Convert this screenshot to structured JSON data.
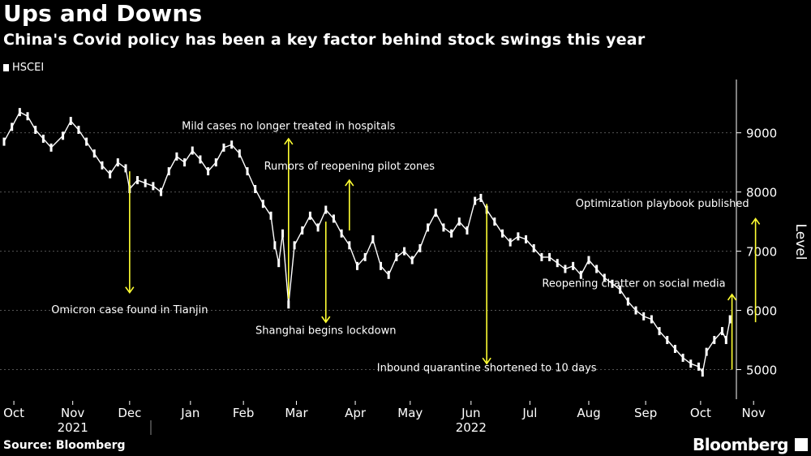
{
  "title": "Ups and Downs",
  "subtitle": "China's Covid policy has been a key factor behind stock swings this year",
  "source": "Source: Bloomberg",
  "brand": "Bloomberg",
  "colors": {
    "background": "#000000",
    "series": "#ffffff",
    "annotation_arrow": "#ffff33",
    "grid": "#555555"
  },
  "chart_data": {
    "type": "line",
    "series": [
      {
        "name": "HSCEI",
        "values": [
          [
            0,
            8850
          ],
          [
            4,
            9100
          ],
          [
            8,
            9350
          ],
          [
            12,
            9280
          ],
          [
            16,
            9050
          ],
          [
            20,
            8900
          ],
          [
            24,
            8750
          ],
          [
            30,
            8950
          ],
          [
            34,
            9200
          ],
          [
            38,
            9050
          ],
          [
            42,
            8850
          ],
          [
            46,
            8650
          ],
          [
            50,
            8450
          ],
          [
            54,
            8300
          ],
          [
            58,
            8500
          ],
          [
            62,
            8400
          ],
          [
            64,
            8050
          ],
          [
            68,
            8200
          ],
          [
            72,
            8150
          ],
          [
            76,
            8100
          ],
          [
            80,
            8000
          ],
          [
            84,
            8350
          ],
          [
            88,
            8600
          ],
          [
            92,
            8500
          ],
          [
            96,
            8700
          ],
          [
            100,
            8550
          ],
          [
            104,
            8350
          ],
          [
            108,
            8500
          ],
          [
            112,
            8750
          ],
          [
            116,
            8800
          ],
          [
            120,
            8650
          ],
          [
            124,
            8350
          ],
          [
            128,
            8050
          ],
          [
            132,
            7800
          ],
          [
            136,
            7600
          ],
          [
            138,
            7100
          ],
          [
            140,
            6800
          ],
          [
            142,
            7300
          ],
          [
            145,
            6100
          ],
          [
            148,
            7100
          ],
          [
            152,
            7350
          ],
          [
            156,
            7600
          ],
          [
            160,
            7400
          ],
          [
            164,
            7700
          ],
          [
            168,
            7550
          ],
          [
            172,
            7300
          ],
          [
            176,
            7100
          ],
          [
            180,
            6750
          ],
          [
            184,
            6900
          ],
          [
            188,
            7200
          ],
          [
            192,
            6750
          ],
          [
            196,
            6600
          ],
          [
            200,
            6900
          ],
          [
            204,
            7000
          ],
          [
            208,
            6850
          ],
          [
            212,
            7050
          ],
          [
            216,
            7400
          ],
          [
            220,
            7650
          ],
          [
            224,
            7400
          ],
          [
            228,
            7300
          ],
          [
            232,
            7500
          ],
          [
            236,
            7350
          ],
          [
            240,
            7850
          ],
          [
            243,
            7900
          ],
          [
            246,
            7700
          ],
          [
            250,
            7500
          ],
          [
            254,
            7300
          ],
          [
            258,
            7150
          ],
          [
            262,
            7250
          ],
          [
            266,
            7200
          ],
          [
            270,
            7050
          ],
          [
            274,
            6900
          ],
          [
            278,
            6900
          ],
          [
            282,
            6800
          ],
          [
            286,
            6700
          ],
          [
            290,
            6750
          ],
          [
            294,
            6600
          ],
          [
            298,
            6850
          ],
          [
            302,
            6700
          ],
          [
            306,
            6550
          ],
          [
            310,
            6450
          ],
          [
            314,
            6350
          ],
          [
            318,
            6150
          ],
          [
            322,
            6000
          ],
          [
            326,
            5900
          ],
          [
            330,
            5850
          ],
          [
            334,
            5650
          ],
          [
            338,
            5500
          ],
          [
            342,
            5350
          ],
          [
            346,
            5200
          ],
          [
            350,
            5100
          ],
          [
            354,
            5050
          ],
          [
            356,
            4950
          ],
          [
            358,
            5300
          ],
          [
            362,
            5500
          ],
          [
            366,
            5650
          ],
          [
            368,
            5500
          ],
          [
            370,
            5850
          ]
        ]
      }
    ],
    "x_range": [
      0,
      372
    ],
    "ylim": [
      4500,
      9900
    ],
    "yticks": [
      5000,
      6000,
      7000,
      8000,
      9000
    ],
    "ylabel": "Level",
    "xticks": [
      {
        "pos": 5,
        "label": "Oct"
      },
      {
        "pos": 35,
        "label": "Nov"
      },
      {
        "pos": 64,
        "label": "Dec"
      },
      {
        "pos": 95,
        "label": "Jan"
      },
      {
        "pos": 122,
        "label": "Feb"
      },
      {
        "pos": 149,
        "label": "Mar"
      },
      {
        "pos": 179,
        "label": "Apr"
      },
      {
        "pos": 207,
        "label": "May"
      },
      {
        "pos": 238,
        "label": "Jun"
      },
      {
        "pos": 268,
        "label": "Jul"
      },
      {
        "pos": 298,
        "label": "Aug"
      },
      {
        "pos": 327,
        "label": "Sep"
      },
      {
        "pos": 355,
        "label": "Oct"
      },
      {
        "pos": 382,
        "label": "Nov"
      }
    ],
    "year_labels": [
      {
        "pos": 35,
        "label": "2021"
      },
      {
        "pos": 238,
        "label": "2022"
      }
    ],
    "annotations": [
      {
        "text": "Omicron case found in Tianjin",
        "x": 64,
        "y_from": 8350,
        "y_to": 6300,
        "text_y": 5950,
        "dir": "down"
      },
      {
        "text": "Mild cases no longer treated in hospitals",
        "x": 145,
        "y_from": 6200,
        "y_to": 8900,
        "text_y": 9060,
        "dir": "up"
      },
      {
        "text": "Rumors of reopening pilot zones",
        "x": 176,
        "y_from": 7350,
        "y_to": 8200,
        "text_y": 8380,
        "dir": "up"
      },
      {
        "text": "Shanghai begins lockdown",
        "x": 164,
        "y_from": 7500,
        "y_to": 5800,
        "text_y": 5600,
        "dir": "down"
      },
      {
        "text": "Inbound quarantine shortened to 10 days",
        "x": 246,
        "y_from": 7800,
        "y_to": 5100,
        "text_y": 4970,
        "dir": "down"
      },
      {
        "text": "Optimization playbook published",
        "x": 383,
        "y_from": 5800,
        "y_to": 7550,
        "text_y": 7750,
        "dir": "up"
      },
      {
        "text": "Reopening chatter on social media",
        "x": 371,
        "y_from": 5000,
        "y_to": 6270,
        "text_y": 6400,
        "dir": "up"
      }
    ]
  }
}
